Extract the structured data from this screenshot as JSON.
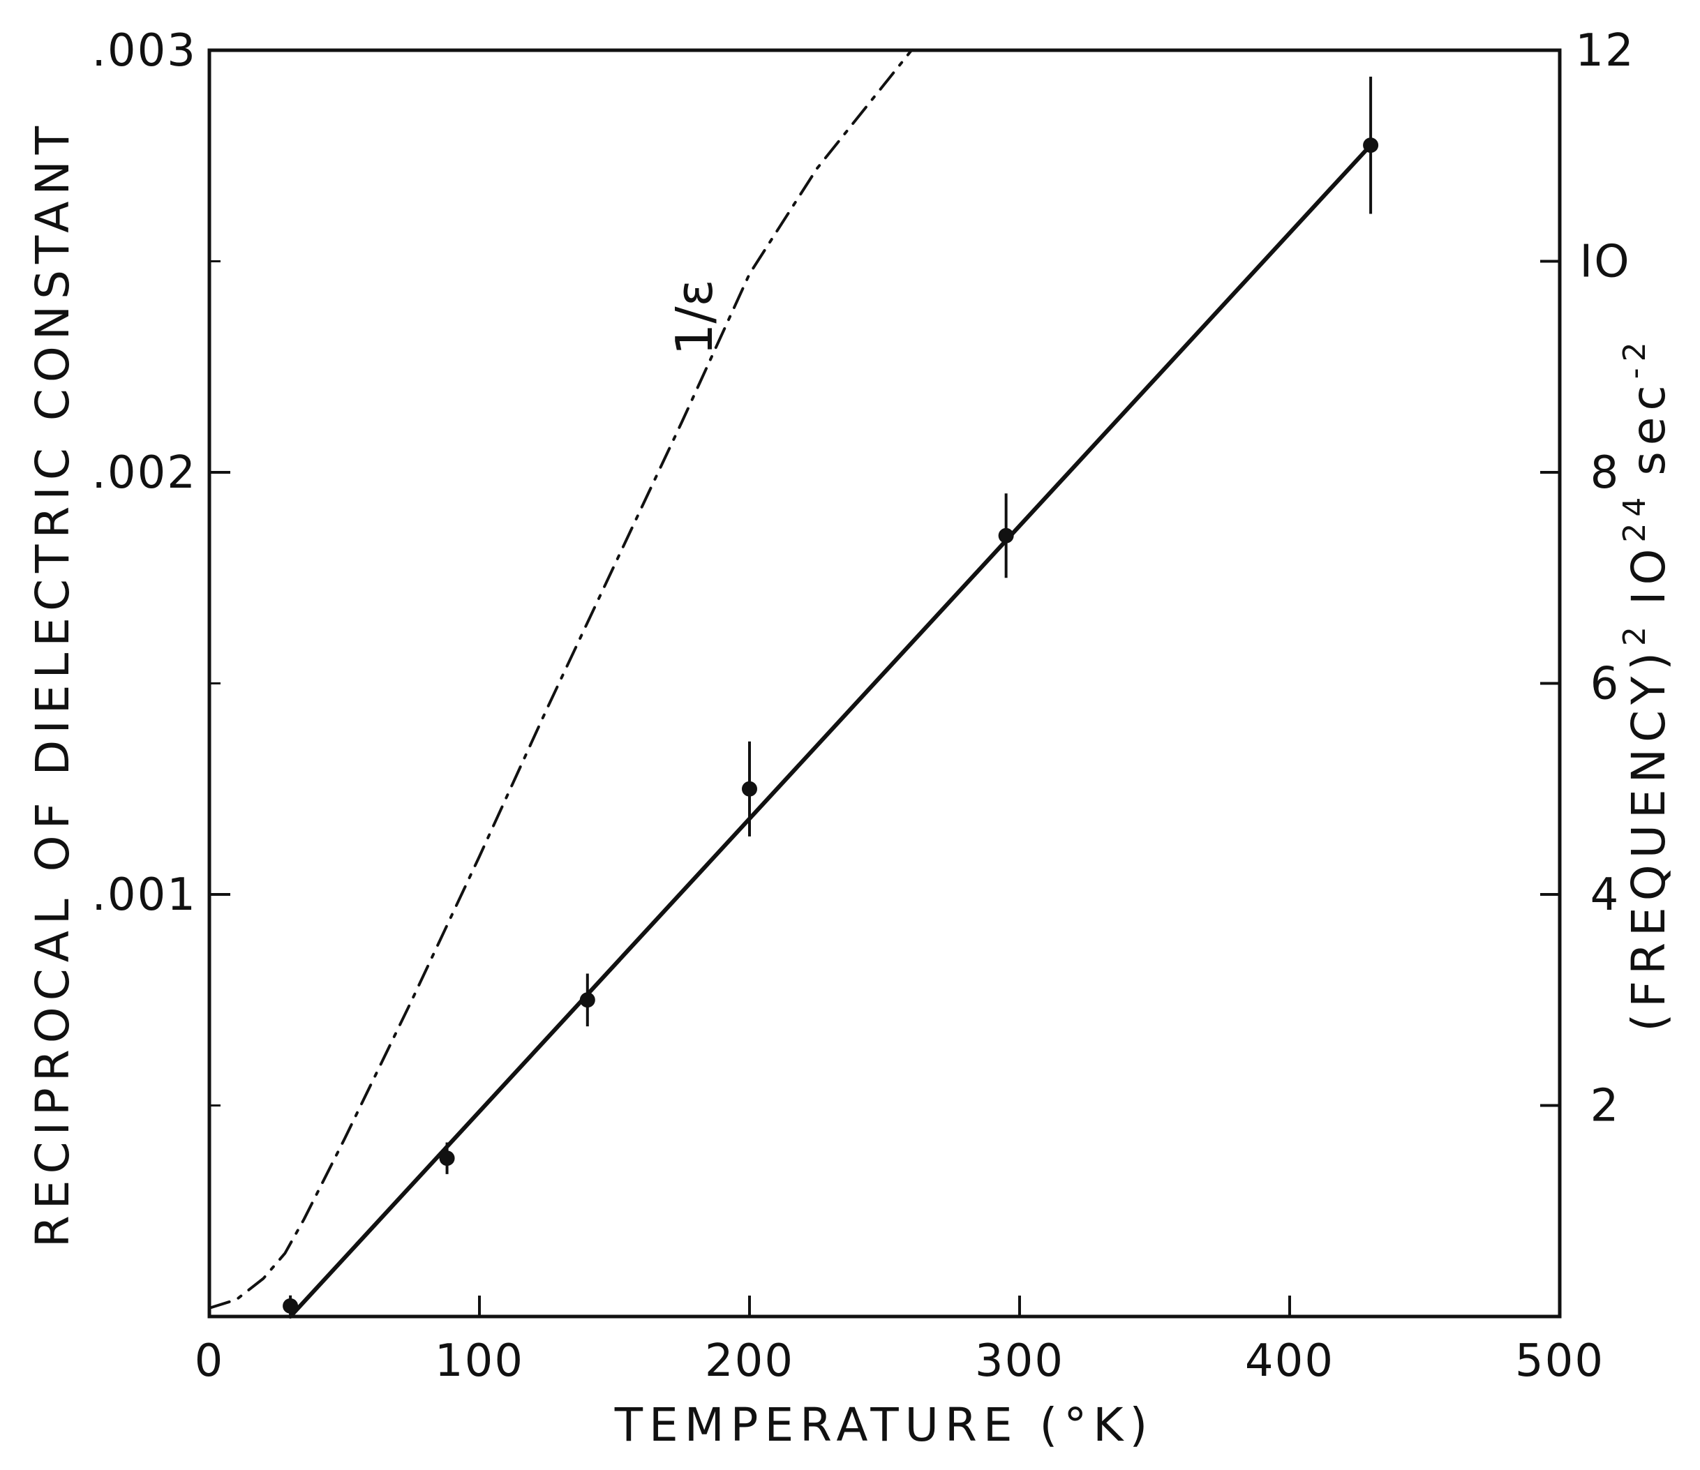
{
  "chart_data": {
    "type": "line",
    "xlabel": "TEMPERATURE (°K)",
    "ylabel_left": "RECIPROCAL OF DIELECTRIC CONSTANT",
    "ylabel_right_prefix": "(FREQUENCY)",
    "ylabel_right_exp1": "2",
    "ylabel_right_unit": "IO",
    "ylabel_right_exp2": "24",
    "ylabel_right_suffix": "sec",
    "ylabel_right_exp3": "-2",
    "xlim": [
      0,
      500
    ],
    "ylim_left": [
      0,
      0.003
    ],
    "ylim_right": [
      0,
      12
    ],
    "grid": false,
    "x_ticks": [
      0,
      100,
      200,
      300,
      400,
      500
    ],
    "x_tick_labels": [
      "0",
      "100",
      "200",
      "300",
      "400",
      "500"
    ],
    "y_left_ticks": [
      0.001,
      0.002,
      0.003
    ],
    "y_left_tick_labels": [
      ".001",
      ".002",
      ".003"
    ],
    "y_left_minor_ticks": [
      0.0005,
      0.0015,
      0.0025
    ],
    "y_right_ticks": [
      2,
      4,
      6,
      8,
      10,
      12
    ],
    "y_right_tick_labels": [
      "2",
      "4",
      "6",
      "8",
      "IO",
      "12"
    ],
    "annotation": "1/ε",
    "series": [
      {
        "name": "",
        "style": "dash-dot",
        "axis": "left",
        "x": [
          0,
          10,
          20,
          28,
          35,
          50,
          75,
          100,
          125,
          150,
          175,
          200,
          225,
          250,
          260
        ],
        "y": [
          2e-05,
          4e-05,
          9e-05,
          0.00015,
          0.00023,
          0.00042,
          0.00075,
          0.00109,
          0.00144,
          0.00178,
          0.00212,
          0.00247,
          0.00272,
          0.00292,
          0.003
        ]
      },
      {
        "name": "",
        "style": "solid",
        "axis": "right",
        "x": [
          30,
          430
        ],
        "y": [
          0,
          11.1
        ]
      }
    ],
    "points": {
      "axis": "right",
      "x": [
        30,
        88,
        140,
        200,
        295,
        430
      ],
      "y": [
        0.1,
        1.5,
        3.0,
        5.0,
        7.4,
        11.1
      ],
      "err": [
        0.1,
        0.15,
        0.25,
        0.45,
        0.4,
        0.65
      ]
    }
  }
}
